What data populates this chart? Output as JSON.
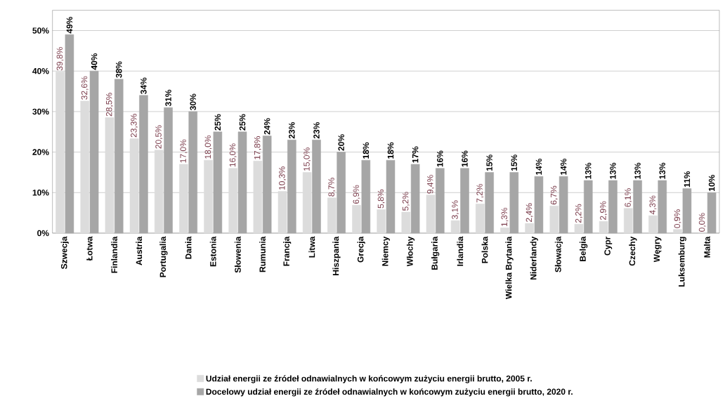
{
  "chart_data": {
    "type": "bar",
    "categories": [
      "Szwecja",
      "Łotwa",
      "Finlandia",
      "Austria",
      "Portugalia",
      "Dania",
      "Estonia",
      "Słowenia",
      "Rumunia",
      "Francja",
      "Litwa",
      "Hiszpania",
      "Grecja",
      "Niemcy",
      "Włochy",
      "Bułgaria",
      "Irlandia",
      "Polska",
      "Wielka Brytania",
      "Niderlandy",
      "Słowacja",
      "Belgia",
      "Cypr",
      "Czechy",
      "Węgry",
      "Luksemburg",
      "Malta"
    ],
    "series": [
      {
        "name": "Udział energii ze źródeł odnawialnych w końcowym zużyciu energii brutto, 2005 r.",
        "color": "#dcdcdc",
        "values": [
          39.8,
          32.6,
          28.5,
          23.3,
          20.5,
          17.0,
          18.0,
          16.0,
          17.8,
          10.3,
          15.0,
          8.7,
          6.9,
          5.8,
          5.2,
          9.4,
          3.1,
          7.2,
          1.3,
          2.4,
          6.7,
          2.2,
          2.9,
          6.1,
          4.3,
          0.9,
          0.0
        ],
        "value_labels": [
          "39,8%",
          "32,6%",
          "28,5%",
          "23,3%",
          "20,5%",
          "17,0%",
          "18,0%",
          "16,0%",
          "17,8%",
          "10,3%",
          "15,0%",
          "8,7%",
          "6,9%",
          "5,8%",
          "5,2%",
          "9,4%",
          "3,1%",
          "7,2%",
          "1,3%",
          "2,4%",
          "6,7%",
          "2,2%",
          "2,9%",
          "6,1%",
          "4,3%",
          "0,9%",
          "0,0%"
        ]
      },
      {
        "name": "Docelowy udział energii ze źródeł odnawialnych w końcowym zużyciu energii brutto, 2020 r.",
        "color": "#a6a6a6",
        "values": [
          49,
          40,
          38,
          34,
          31,
          30,
          25,
          25,
          24,
          23,
          23,
          20,
          18,
          18,
          17,
          16,
          16,
          15,
          15,
          14,
          14,
          13,
          13,
          13,
          13,
          11,
          10
        ],
        "value_labels": [
          "49%",
          "40%",
          "38%",
          "34%",
          "31%",
          "30%",
          "25%",
          "25%",
          "24%",
          "23%",
          "23%",
          "20%",
          "18%",
          "18%",
          "17%",
          "16%",
          "16%",
          "15%",
          "15%",
          "14%",
          "14%",
          "13%",
          "13%",
          "13%",
          "13%",
          "11%",
          "10%"
        ]
      }
    ],
    "ylim": [
      0,
      55
    ],
    "yticks": [
      {
        "value": 0,
        "label": "0%"
      },
      {
        "value": 10,
        "label": "10%"
      },
      {
        "value": 20,
        "label": "20%"
      },
      {
        "value": 30,
        "label": "30%"
      },
      {
        "value": 40,
        "label": "40%"
      },
      {
        "value": 50,
        "label": "50%"
      }
    ],
    "grid": "y",
    "legend": "bottom"
  }
}
